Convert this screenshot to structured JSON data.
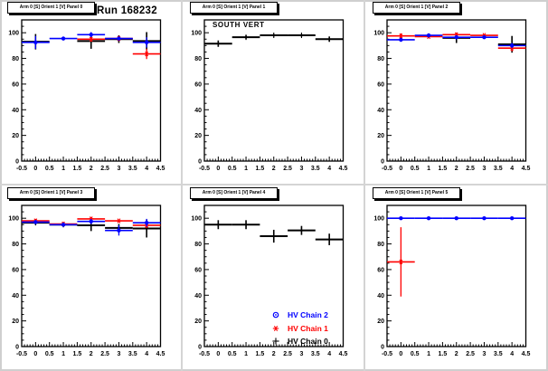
{
  "run_title": "Run 168232",
  "colors": {
    "canvas_bg": "#ffffff",
    "frame": "#000000",
    "separator": "#d4d4d4",
    "hv_chain_0": "#000000",
    "hv_chain_1": "#ff0000",
    "hv_chain_2": "#0000ff"
  },
  "legend": {
    "entries": [
      {
        "label": "HV Chain 2",
        "color": "#0000ff",
        "marker": "circle"
      },
      {
        "label": "HV Chain 1",
        "color": "#ff0000",
        "marker": "star"
      },
      {
        "label": "HV Chain 0",
        "color": "#000000",
        "marker": "plus"
      }
    ]
  },
  "chart_data": {
    "type": "scatter",
    "grid": false,
    "axes": {
      "xlim": [
        -0.5,
        4.5
      ],
      "ylim": [
        0,
        110
      ],
      "xticks": [
        -0.5,
        0,
        0.5,
        1,
        1.5,
        2,
        2.5,
        3,
        3.5,
        4,
        4.5
      ],
      "xtick_labels": [
        "-0.5",
        "0",
        "0.5",
        "1",
        "1.5",
        "2",
        "2.5",
        "3",
        "3.5",
        "4",
        "4.5"
      ],
      "yticks": [
        0,
        20,
        40,
        60,
        80,
        100
      ],
      "ytick_labels": [
        "0",
        "20",
        "40",
        "60",
        "80",
        "100"
      ]
    },
    "plots": [
      {
        "title": "Arm 0 [S] Orient 1 [V] Panel 0",
        "series": [
          {
            "name": "HV Chain 0",
            "color": "#000000",
            "marker": "plus",
            "xerr": 0.5,
            "x": [
              0,
              2,
              3,
              4
            ],
            "y": [
              93,
              93.5,
              95,
              93.5
            ],
            "yerr": [
              6,
              6,
              3,
              7
            ]
          },
          {
            "name": "HV Chain 1",
            "color": "#ff0000",
            "marker": "star",
            "xerr": 0.5,
            "x": [
              2,
              3,
              4
            ],
            "y": [
              95,
              95.5,
              83.5
            ],
            "yerr": [
              2,
              2,
              4
            ]
          },
          {
            "name": "HV Chain 2",
            "color": "#0000ff",
            "marker": "circle",
            "xerr": 0.5,
            "x": [
              0,
              1,
              2,
              3,
              4
            ],
            "y": [
              92.5,
              95.5,
              98.5,
              95.5,
              92.5
            ],
            "yerr": [
              5,
              1.5,
              2,
              1.5,
              4
            ]
          }
        ]
      },
      {
        "title": "Arm 0 [S] Orient 1 [V] Panel 1",
        "annotation": "SOUTH VERT",
        "series": [
          {
            "name": "HV Chain 0",
            "color": "#000000",
            "marker": "plus",
            "xerr": 0.5,
            "x": [
              0,
              1,
              2,
              3,
              4
            ],
            "y": [
              91.5,
              96.5,
              98,
              98,
              95
            ],
            "yerr": [
              2.5,
              1.5,
              1,
              1,
              2
            ]
          }
        ]
      },
      {
        "title": "Arm 0 [S] Orient 1 [V] Panel 2",
        "series": [
          {
            "name": "HV Chain 0",
            "color": "#000000",
            "marker": "plus",
            "xerr": 0.5,
            "x": [
              2,
              4
            ],
            "y": [
              96,
              91
            ],
            "yerr": [
              4,
              6.5
            ]
          },
          {
            "name": "HV Chain 1",
            "color": "#ff0000",
            "marker": "star",
            "xerr": 0.5,
            "x": [
              0,
              1,
              2,
              3,
              4
            ],
            "y": [
              97.5,
              97,
              98.5,
              98,
              88
            ],
            "yerr": [
              2,
              1,
              1.5,
              1,
              2.5
            ]
          },
          {
            "name": "HV Chain 2",
            "color": "#0000ff",
            "marker": "circle",
            "xerr": 0.5,
            "x": [
              0,
              1,
              2,
              3,
              4
            ],
            "y": [
              94.5,
              98,
              96.5,
              96.5,
              90
            ],
            "yerr": [
              1.5,
              1.5,
              1.5,
              1,
              2
            ]
          }
        ]
      },
      {
        "title": "Arm 0 [S] Orient 1 [V] Panel 3",
        "series": [
          {
            "name": "HV Chain 0",
            "color": "#000000",
            "marker": "plus",
            "xerr": 0.5,
            "x": [
              0,
              1,
              2,
              3,
              4
            ],
            "y": [
              96.5,
              95,
              94.5,
              92.5,
              92
            ],
            "yerr": [
              1.5,
              1.5,
              4.5,
              3,
              7
            ]
          },
          {
            "name": "HV Chain 1",
            "color": "#ff0000",
            "marker": "star",
            "xerr": 0.5,
            "x": [
              0,
              1,
              2,
              3,
              4
            ],
            "y": [
              98,
              95.5,
              99.5,
              98,
              94.5
            ],
            "yerr": [
              1.5,
              1.5,
              1.5,
              1,
              2
            ]
          },
          {
            "name": "HV Chain 2",
            "color": "#0000ff",
            "marker": "circle",
            "xerr": 0.5,
            "x": [
              0,
              1,
              2,
              3,
              4
            ],
            "y": [
              97,
              95,
              97.5,
              90.5,
              96.5
            ],
            "yerr": [
              1.5,
              1.5,
              2,
              4,
              3
            ]
          }
        ]
      },
      {
        "title": "Arm 0 [S] Orient 1 [V] Panel 4",
        "series": [
          {
            "name": "HV Chain 0",
            "color": "#000000",
            "marker": "plus",
            "xerr": 0.5,
            "x": [
              0,
              1,
              2,
              3,
              4
            ],
            "y": [
              95,
              95,
              86,
              90.5,
              83.5
            ],
            "yerr": [
              3.5,
              3.5,
              5,
              3.5,
              4.5
            ]
          }
        ]
      },
      {
        "title": "Arm 0 [S] Orient 1 [V] Panel 5",
        "series": [
          {
            "name": "HV Chain 1",
            "color": "#ff0000",
            "marker": "star",
            "xerr": 0.5,
            "x": [
              0
            ],
            "y": [
              66
            ],
            "yerr": [
              27
            ]
          },
          {
            "name": "HV Chain 2",
            "color": "#0000ff",
            "marker": "circle",
            "xerr": 0.5,
            "x": [
              0,
              1,
              2,
              3,
              4
            ],
            "y": [
              100,
              100,
              100,
              100,
              100
            ],
            "yerr": [
              1.2,
              1.2,
              1.2,
              1.2,
              1.2
            ]
          }
        ]
      }
    ]
  }
}
